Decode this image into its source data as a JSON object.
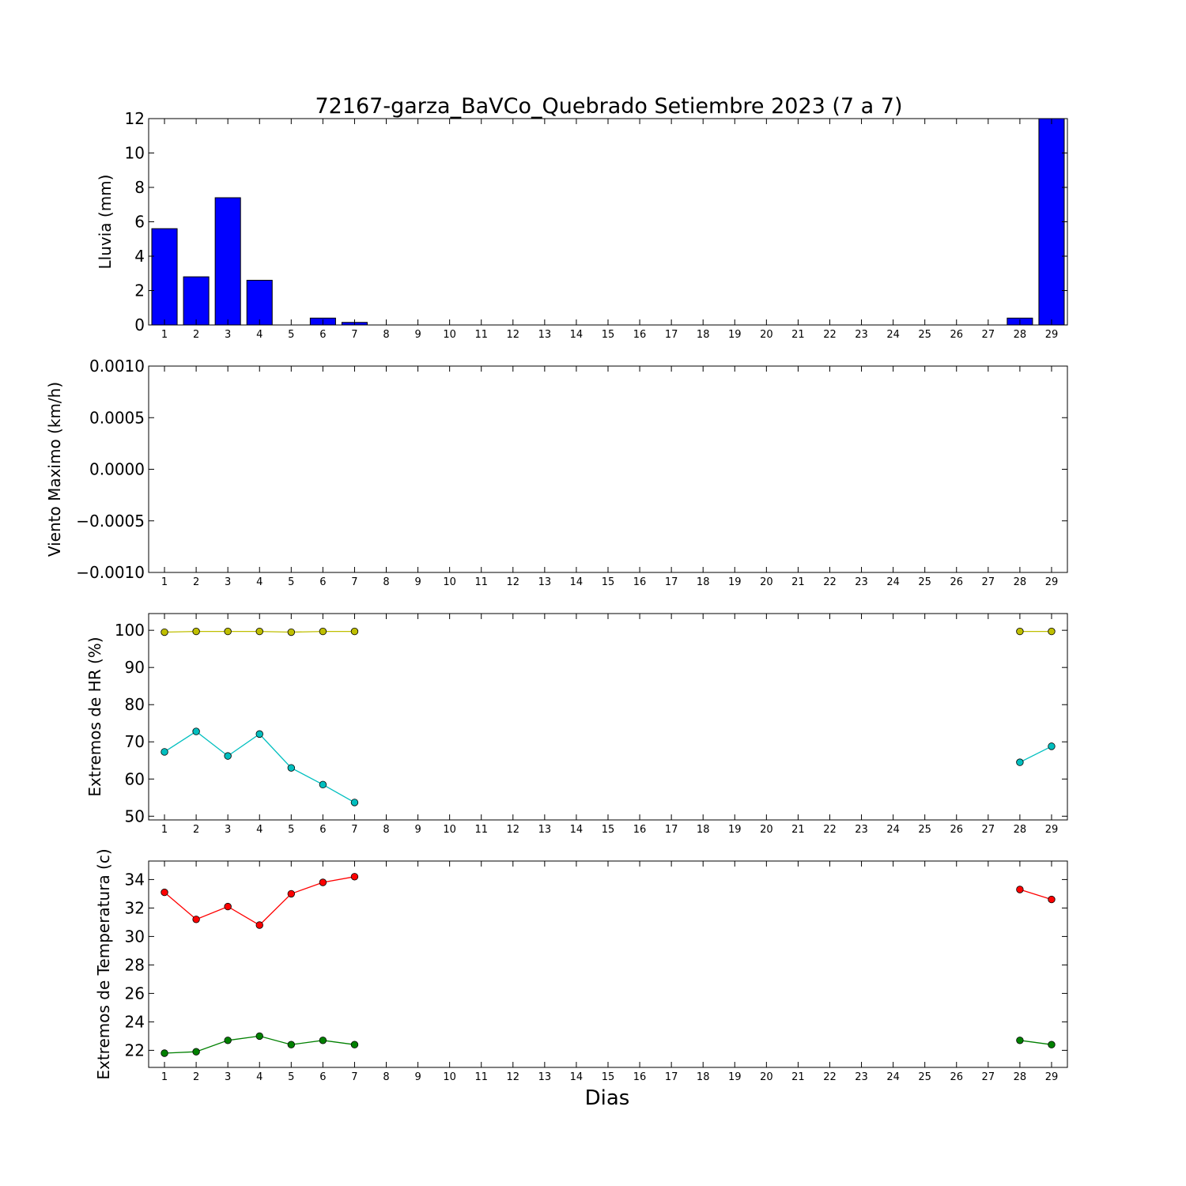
{
  "figure": {
    "title": "72167-garza_BaVCo_Quebrado Setiembre 2023  (7 a 7)",
    "xlabel": "Dias"
  },
  "chart_data": [
    {
      "type": "bar",
      "ylabel": "Lluvia (mm)",
      "x": [
        1,
        2,
        3,
        4,
        5,
        6,
        7,
        8,
        9,
        10,
        11,
        12,
        13,
        14,
        15,
        16,
        17,
        18,
        19,
        20,
        21,
        22,
        23,
        24,
        25,
        26,
        27,
        28,
        29
      ],
      "xlim": [
        0.5,
        29.5
      ],
      "ylim": [
        0,
        12
      ],
      "yticks": [
        0,
        2,
        4,
        6,
        8,
        10,
        12
      ],
      "ytick_labels": [
        "0",
        "2",
        "4",
        "6",
        "8",
        "10",
        "12"
      ],
      "series": [
        {
          "color": "#0000ff",
          "values": [
            5.6,
            2.8,
            7.4,
            2.6,
            0,
            0.4,
            0.15,
            null,
            null,
            null,
            null,
            null,
            null,
            null,
            null,
            null,
            null,
            null,
            null,
            null,
            null,
            null,
            null,
            null,
            null,
            null,
            null,
            0.4,
            12.0
          ]
        }
      ]
    },
    {
      "type": "line",
      "ylabel": "Viento Maximo (km/h)",
      "x": [
        1,
        2,
        3,
        4,
        5,
        6,
        7,
        8,
        9,
        10,
        11,
        12,
        13,
        14,
        15,
        16,
        17,
        18,
        19,
        20,
        21,
        22,
        23,
        24,
        25,
        26,
        27,
        28,
        29
      ],
      "xlim": [
        0.5,
        29.5
      ],
      "ylim": [
        -0.001,
        0.001
      ],
      "yticks": [
        -0.001,
        -0.0005,
        0,
        0.0005,
        0.001
      ],
      "ytick_labels": [
        "−0.0010",
        "−0.0005",
        "0.0000",
        "0.0005",
        "0.0010"
      ],
      "series": []
    },
    {
      "type": "line",
      "ylabel": "Extremos de HR (%)",
      "x": [
        1,
        2,
        3,
        4,
        5,
        6,
        7,
        8,
        9,
        10,
        11,
        12,
        13,
        14,
        15,
        16,
        17,
        18,
        19,
        20,
        21,
        22,
        23,
        24,
        25,
        26,
        27,
        28,
        29
      ],
      "xlim": [
        0.5,
        29.5
      ],
      "ylim": [
        49,
        104.5
      ],
      "yticks": [
        50,
        60,
        70,
        80,
        90,
        100
      ],
      "ytick_labels": [
        "50",
        "60",
        "70",
        "80",
        "90",
        "100"
      ],
      "series": [
        {
          "color": "#bfbf00",
          "values": [
            99.5,
            99.7,
            99.7,
            99.7,
            99.5,
            99.7,
            99.7,
            null,
            null,
            null,
            null,
            null,
            null,
            null,
            null,
            null,
            null,
            null,
            null,
            null,
            null,
            null,
            null,
            null,
            null,
            null,
            null,
            99.7,
            99.7
          ]
        },
        {
          "color": "#00bfbf",
          "values": [
            67.3,
            72.8,
            66.2,
            72.1,
            63.0,
            58.5,
            53.7,
            null,
            null,
            null,
            null,
            null,
            null,
            null,
            null,
            null,
            null,
            null,
            null,
            null,
            null,
            null,
            null,
            null,
            null,
            null,
            null,
            64.5,
            68.8
          ]
        }
      ]
    },
    {
      "type": "line",
      "ylabel": "Extremos de Temperatura (c)",
      "x": [
        1,
        2,
        3,
        4,
        5,
        6,
        7,
        8,
        9,
        10,
        11,
        12,
        13,
        14,
        15,
        16,
        17,
        18,
        19,
        20,
        21,
        22,
        23,
        24,
        25,
        26,
        27,
        28,
        29
      ],
      "xlim": [
        0.5,
        29.5
      ],
      "ylim": [
        20.8,
        35.3
      ],
      "yticks": [
        22,
        24,
        26,
        28,
        30,
        32,
        34
      ],
      "ytick_labels": [
        "22",
        "24",
        "26",
        "28",
        "30",
        "32",
        "34"
      ],
      "series": [
        {
          "color": "#ff0000",
          "values": [
            33.1,
            31.2,
            32.1,
            30.8,
            33.0,
            33.8,
            34.2,
            null,
            null,
            null,
            null,
            null,
            null,
            null,
            null,
            null,
            null,
            null,
            null,
            null,
            null,
            null,
            null,
            null,
            null,
            null,
            null,
            33.3,
            32.6
          ]
        },
        {
          "color": "#008000",
          "values": [
            21.8,
            21.9,
            22.7,
            23.0,
            22.4,
            22.7,
            22.4,
            null,
            null,
            null,
            null,
            null,
            null,
            null,
            null,
            null,
            null,
            null,
            null,
            null,
            null,
            null,
            null,
            null,
            null,
            null,
            null,
            22.7,
            22.4
          ]
        }
      ]
    }
  ]
}
